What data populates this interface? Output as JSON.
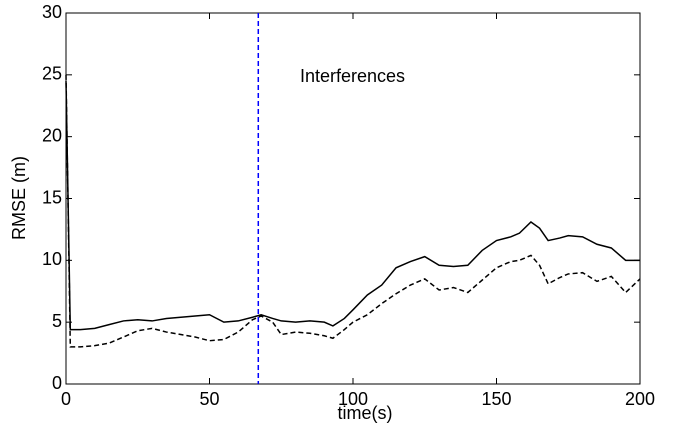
{
  "chart_data": {
    "type": "line",
    "xlabel": "time(s)",
    "ylabel": "RMSE (m)",
    "annotation": "Interferences",
    "vline_x": 67,
    "vline_color": "#0000ff",
    "x": [
      0,
      1.5,
      5,
      10,
      15,
      20,
      25,
      30,
      35,
      40,
      45,
      50,
      55,
      60,
      65,
      68,
      72,
      75,
      80,
      85,
      90,
      93,
      97,
      100,
      105,
      110,
      115,
      120,
      125,
      130,
      135,
      140,
      145,
      150,
      155,
      158,
      162,
      165,
      168,
      172,
      175,
      180,
      185,
      190,
      195,
      200
    ],
    "series": [
      {
        "color": "#000000",
        "dash": "solid",
        "values": [
          24.5,
          4.4,
          4.4,
          4.5,
          4.8,
          5.1,
          5.2,
          5.1,
          5.3,
          5.4,
          5.5,
          5.6,
          5.0,
          5.1,
          5.4,
          5.6,
          5.3,
          5.1,
          5.0,
          5.1,
          5.0,
          4.7,
          5.3,
          6.0,
          7.2,
          8.0,
          9.4,
          9.9,
          10.3,
          9.6,
          9.5,
          9.6,
          10.8,
          11.6,
          11.9,
          12.2,
          13.1,
          12.6,
          11.6,
          11.8,
          12.0,
          11.9,
          11.3,
          11.0,
          10.0,
          10.0
        ]
      },
      {
        "color": "#000000",
        "dash": "dashed",
        "values": [
          25.0,
          3.0,
          3.0,
          3.1,
          3.3,
          3.8,
          4.3,
          4.5,
          4.2,
          4.0,
          3.8,
          3.5,
          3.6,
          4.2,
          5.2,
          5.5,
          5.0,
          4.0,
          4.2,
          4.1,
          3.9,
          3.7,
          4.4,
          5.0,
          5.6,
          6.5,
          7.3,
          8.0,
          8.5,
          7.6,
          7.8,
          7.4,
          8.4,
          9.4,
          9.9,
          10.0,
          10.4,
          9.6,
          8.1,
          8.6,
          8.9,
          9.0,
          8.3,
          8.7,
          7.4,
          8.5
        ]
      }
    ],
    "xlim": [
      0,
      200
    ],
    "xticks": [
      0,
      50,
      100,
      150,
      200
    ],
    "ylim": [
      0,
      30
    ],
    "yticks": [
      0,
      5,
      10,
      15,
      20,
      25,
      30
    ],
    "grid": false
  }
}
